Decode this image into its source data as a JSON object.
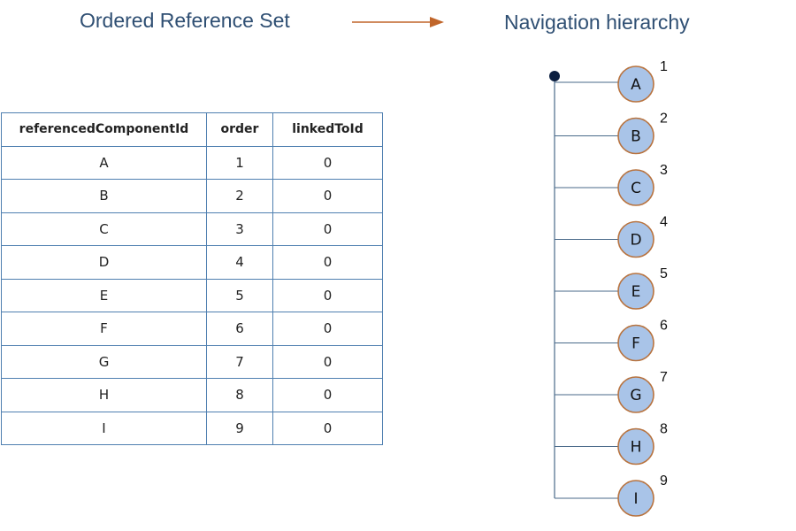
{
  "titles": {
    "left": "Ordered Reference Set",
    "right": "Navigation hierarchy"
  },
  "colors": {
    "title": "#2f4f73",
    "arrow": "#c0652a",
    "table_border": "#4f7fb0",
    "node_fill": "#a9c4e8",
    "node_stroke": "#b8733f",
    "tree_line": "#4a6a8a",
    "root_dot": "#0c1f40"
  },
  "table": {
    "headers": [
      "referencedComponentId",
      "order",
      "linkedToId"
    ],
    "rows": [
      [
        "A",
        "1",
        "0"
      ],
      [
        "B",
        "2",
        "0"
      ],
      [
        "C",
        "3",
        "0"
      ],
      [
        "D",
        "4",
        "0"
      ],
      [
        "E",
        "5",
        "0"
      ],
      [
        "F",
        "6",
        "0"
      ],
      [
        "G",
        "7",
        "0"
      ],
      [
        "H",
        "8",
        "0"
      ],
      [
        "I",
        "9",
        "0"
      ]
    ]
  },
  "hierarchy": {
    "nodes": [
      {
        "label": "A",
        "order": "1"
      },
      {
        "label": "B",
        "order": "2"
      },
      {
        "label": "C",
        "order": "3"
      },
      {
        "label": "D",
        "order": "4"
      },
      {
        "label": "E",
        "order": "5"
      },
      {
        "label": "F",
        "order": "6"
      },
      {
        "label": "G",
        "order": "7"
      },
      {
        "label": "H",
        "order": "8"
      },
      {
        "label": "I",
        "order": "9"
      }
    ]
  }
}
